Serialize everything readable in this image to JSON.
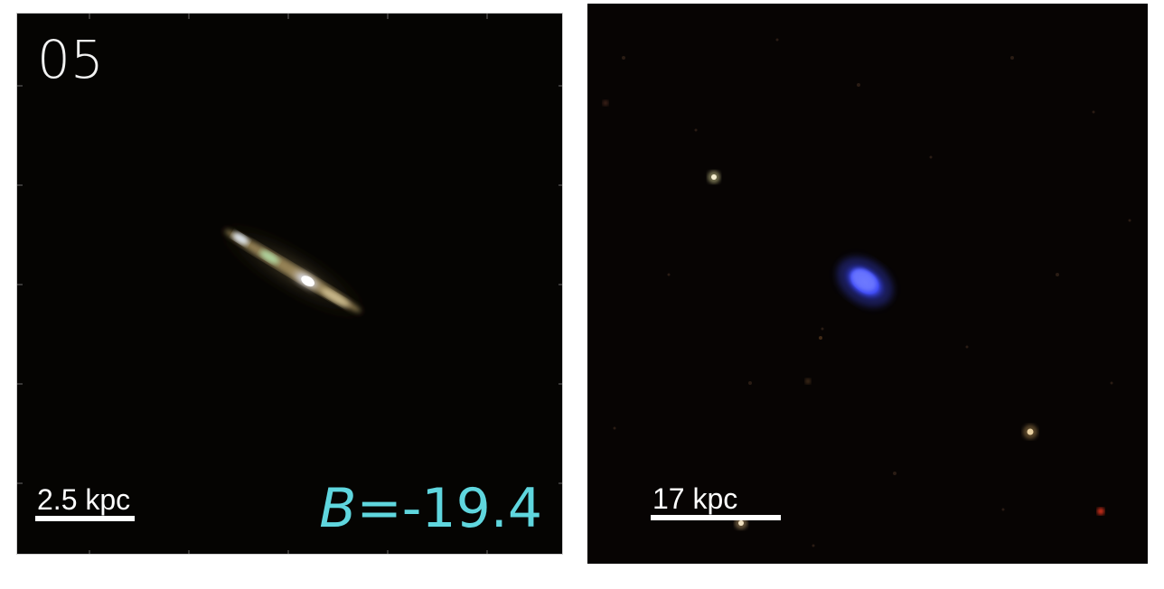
{
  "left_panel": {
    "id_label": "05",
    "scale_label": "2.5 kpc",
    "magnitude": {
      "band": "B",
      "value": "=-19.4"
    },
    "colors": {
      "background": "#050402",
      "label_cyan": "#5fd6de"
    }
  },
  "right_panel": {
    "scale_label": "17 kpc",
    "colors": {
      "background": "#070403",
      "galaxy_blue": "#4a55ff"
    }
  }
}
